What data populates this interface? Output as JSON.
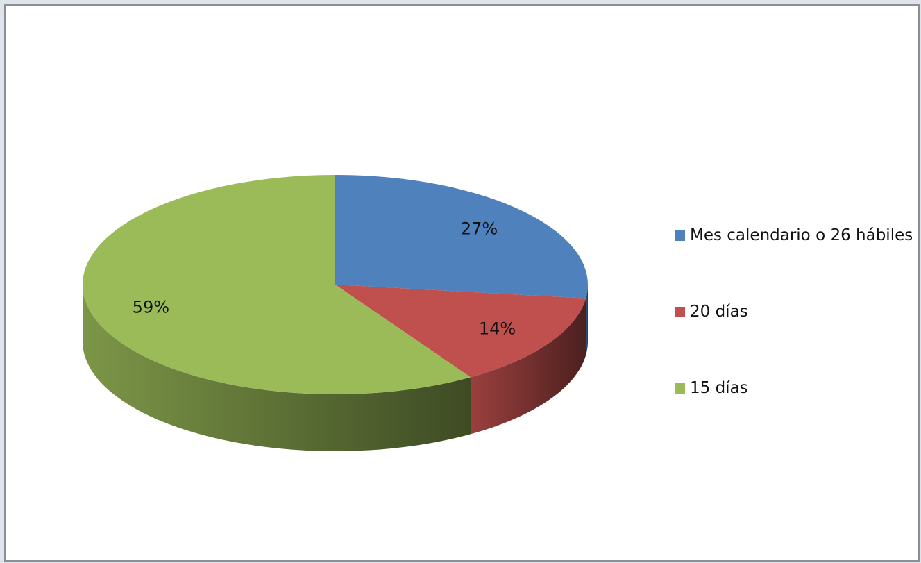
{
  "chart_data": {
    "type": "pie",
    "categories": [
      "Mes calendario o 26 hábiles",
      "20 días",
      "15 días"
    ],
    "values": [
      27,
      14,
      59
    ],
    "value_labels": [
      "27%",
      "14%",
      "59%"
    ],
    "colors": [
      "#4f81bd",
      "#c0504d",
      "#9bbb59"
    ],
    "legend": "right"
  }
}
